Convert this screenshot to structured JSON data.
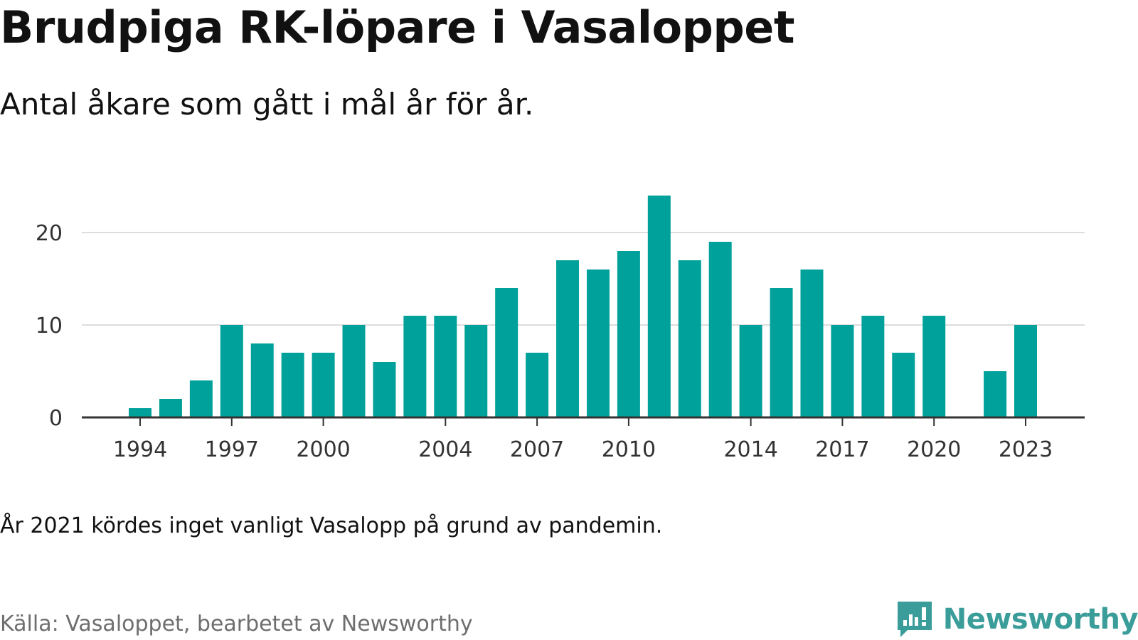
{
  "title": "Brudpiga RK-löpare i Vasaloppet",
  "subtitle": "Antal åkare som gått i mål år för år.",
  "note": "År 2021 kördes inget vanligt Vasalopp på grund av pandemin.",
  "source": "Källa: Vasaloppet, bearbetet av Newsworthy",
  "brand": {
    "name": "Newsworthy",
    "icon": "newsworthy-logo-icon",
    "color": "#3b9d99"
  },
  "colors": {
    "bar": "#00a19a",
    "grid": "#dddddd",
    "axis": "#333333"
  },
  "chart_data": {
    "type": "bar",
    "title": "",
    "xlabel": "",
    "ylabel": "",
    "x": [
      1994,
      1995,
      1996,
      1997,
      1998,
      1999,
      2000,
      2001,
      2002,
      2003,
      2004,
      2005,
      2006,
      2007,
      2008,
      2009,
      2010,
      2011,
      2012,
      2013,
      2014,
      2015,
      2016,
      2017,
      2018,
      2019,
      2020,
      2021,
      2022,
      2023
    ],
    "values": [
      1,
      2,
      4,
      10,
      8,
      7,
      7,
      10,
      6,
      11,
      11,
      10,
      14,
      7,
      17,
      16,
      18,
      24,
      17,
      19,
      10,
      14,
      16,
      10,
      11,
      7,
      11,
      0,
      5,
      10
    ],
    "xlim": [
      1993,
      2025
    ],
    "ylim": [
      0,
      25
    ],
    "x_ticks": [
      "1994",
      "1997",
      "2000",
      "2004",
      "2007",
      "2010",
      "2014",
      "2017",
      "2020",
      "2023"
    ],
    "y_ticks": [
      "0",
      "10",
      "20"
    ],
    "grid": true
  }
}
